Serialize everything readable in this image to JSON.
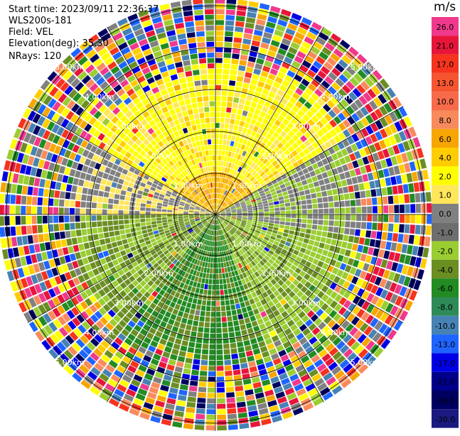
{
  "header": {
    "start_time": "Start time: 2023/09/11 22:36:37",
    "instrument": "WLS200s-181",
    "field": "Field: VEL",
    "elevation": "Elevation(deg): 35.30",
    "nrays": "NRays: 120"
  },
  "range_rings": {
    "labels": [
      "1.00km",
      "2.00km",
      "3.00km",
      "4.00km",
      "5.00km"
    ]
  },
  "colorbar": {
    "unit": "m/s",
    "levels": [
      {
        "label": "26.0",
        "color": "#f0388c"
      },
      {
        "label": "21.0",
        "color": "#e8153a"
      },
      {
        "label": "17.0",
        "color": "#f5331e"
      },
      {
        "label": "13.0",
        "color": "#f5552f"
      },
      {
        "label": "10.0",
        "color": "#f76b4a"
      },
      {
        "label": "8.0",
        "color": "#f88a5c"
      },
      {
        "label": "6.0",
        "color": "#f7a500"
      },
      {
        "label": "4.0",
        "color": "#ffcc00"
      },
      {
        "label": "2.0",
        "color": "#ffff00"
      },
      {
        "label": "1.0",
        "color": "#ffe65a"
      },
      {
        "label": "0.0",
        "color": "#808080"
      },
      {
        "label": "-1.0",
        "color": "#6e6e6e"
      },
      {
        "label": "-2.0",
        "color": "#9acd32"
      },
      {
        "label": "-4.0",
        "color": "#6b8e23"
      },
      {
        "label": "-6.0",
        "color": "#228b22"
      },
      {
        "label": "-8.0",
        "color": "#2e8b57"
      },
      {
        "label": "-10.0",
        "color": "#4682b4"
      },
      {
        "label": "-13.0",
        "color": "#1e64ff"
      },
      {
        "label": "-17.0",
        "color": "#0000e6"
      },
      {
        "label": "-21.0",
        "color": "#00008b"
      },
      {
        "label": "-26.0",
        "color": "#000060"
      },
      {
        "label": "-30.0",
        "color": "#1a1a80"
      }
    ]
  }
}
